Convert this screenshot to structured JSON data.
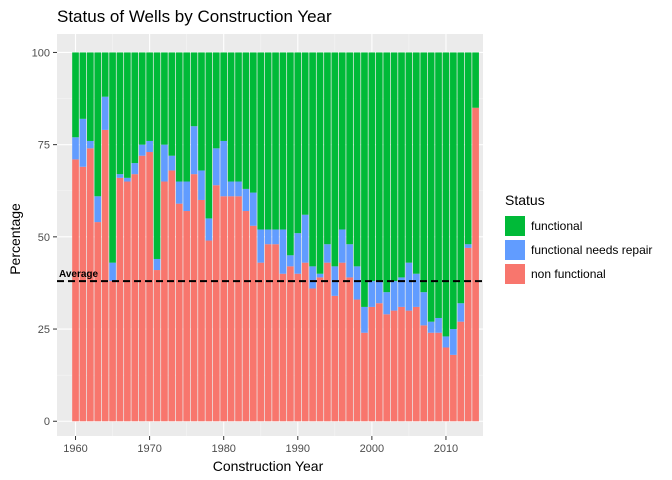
{
  "chart_data": {
    "type": "bar",
    "stacked": true,
    "title": "Status of Wells by Construction Year",
    "xlabel": "Construction Year",
    "ylabel": "Percentage",
    "xlim": [
      1957.5,
      2015
    ],
    "ylim": [
      -4,
      105
    ],
    "x_ticks": [
      1960,
      1970,
      1980,
      1990,
      2000,
      2010
    ],
    "y_ticks": [
      0,
      25,
      50,
      75,
      100
    ],
    "grid": true,
    "legend_title": "Status",
    "legend_position": "right",
    "reference_line": {
      "label": "Average",
      "value": 38,
      "style": "dashed"
    },
    "categories": [
      1960,
      1961,
      1962,
      1963,
      1964,
      1965,
      1966,
      1967,
      1968,
      1969,
      1970,
      1971,
      1972,
      1973,
      1974,
      1975,
      1976,
      1977,
      1978,
      1979,
      1980,
      1981,
      1982,
      1983,
      1984,
      1985,
      1986,
      1987,
      1988,
      1989,
      1990,
      1991,
      1992,
      1993,
      1994,
      1995,
      1996,
      1997,
      1998,
      1999,
      2000,
      2001,
      2002,
      2003,
      2004,
      2005,
      2006,
      2007,
      2008,
      2009,
      2010,
      2011,
      2012,
      2013,
      2014
    ],
    "series": [
      {
        "name": "non functional",
        "color": "#F8766D",
        "values": [
          71,
          69,
          74,
          54,
          79,
          38,
          66,
          65,
          67,
          72,
          73,
          41,
          65,
          68,
          59,
          57,
          67,
          60,
          49,
          64,
          61,
          61,
          61,
          57,
          53,
          43,
          48,
          48,
          40,
          42,
          40,
          43,
          36,
          39,
          43,
          34,
          43,
          39,
          33,
          24,
          31,
          32,
          29,
          30,
          31,
          30,
          31,
          26,
          24,
          24,
          20,
          18,
          27,
          47,
          85
        ]
      },
      {
        "name": "functional needs repair",
        "color": "#619CFF",
        "values": [
          6,
          13,
          2,
          7,
          9,
          5,
          1,
          1,
          3,
          3,
          3,
          3,
          10,
          4,
          6,
          8,
          13,
          8,
          6,
          10,
          15,
          4,
          4,
          6,
          9,
          9,
          4,
          4,
          12,
          3,
          11,
          13,
          6,
          1,
          5,
          8,
          9,
          9,
          9,
          7,
          7,
          6,
          6,
          8,
          8,
          13,
          9,
          9,
          3,
          4,
          3,
          7,
          5,
          1,
          0
        ]
      },
      {
        "name": "functional",
        "color": "#00BA38",
        "values": [
          23,
          18,
          24,
          39,
          12,
          57,
          33,
          34,
          30,
          25,
          24,
          56,
          25,
          28,
          35,
          35,
          20,
          32,
          45,
          26,
          24,
          35,
          35,
          37,
          38,
          48,
          48,
          48,
          48,
          55,
          49,
          44,
          58,
          60,
          52,
          58,
          48,
          52,
          58,
          69,
          62,
          62,
          65,
          62,
          61,
          57,
          60,
          65,
          73,
          72,
          77,
          75,
          68,
          52,
          15
        ]
      }
    ]
  }
}
